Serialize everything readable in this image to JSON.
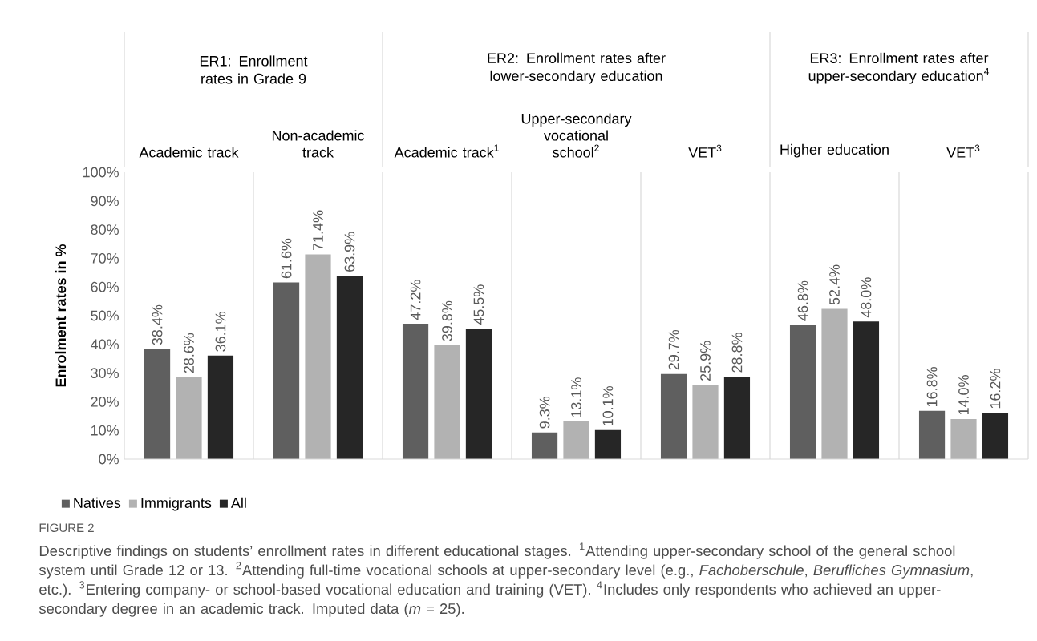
{
  "chart_data": {
    "type": "bar",
    "title": "FIGURE 2",
    "ylabel": "Enrolment rates in %",
    "categories": [
      "Academic track",
      "Non-academic track",
      "Academic track$^{1}$",
      "Upper-secondary vocational school$^{2}$",
      "VET$^{3}$",
      "Higher education",
      "VET$^{3}$"
    ],
    "series": [
      {
        "name": "Natives",
        "color": "#5f5f5f",
        "values": [
          38.4,
          61.6,
          47.2,
          9.3,
          29.7,
          46.8,
          16.8
        ],
        "value_labels": [
          "38.4%",
          "61.6%",
          "47.2%",
          "9.3%",
          "29.7%",
          "46.8%",
          "16.8%"
        ]
      },
      {
        "name": "Immigrants",
        "color": "#b2b2b2",
        "values": [
          28.6,
          71.4,
          39.8,
          13.1,
          25.9,
          52.4,
          14.0
        ],
        "value_labels": [
          "28.6%",
          "71.4%",
          "39.8%",
          "13.1%",
          "25.9%",
          "52.4%",
          "14.0%"
        ]
      },
      {
        "name": "All",
        "color": "#262626",
        "values": [
          36.1,
          63.9,
          45.5,
          10.1,
          28.8,
          48.0,
          16.2
        ],
        "value_labels": [
          "36.1%",
          "63.9%",
          "45.5%",
          "10.1%",
          "28.8%",
          "48.0%",
          "16.2%"
        ]
      }
    ],
    "ylim": [
      0,
      100
    ],
    "yticks": [
      {
        "value": 0,
        "label": "0%"
      },
      {
        "value": 10,
        "label": "10%"
      },
      {
        "value": 20,
        "label": "20%"
      },
      {
        "value": 30,
        "label": "30%"
      },
      {
        "value": 40,
        "label": "40%"
      },
      {
        "value": 50,
        "label": "50%"
      },
      {
        "value": 60,
        "label": "60%"
      },
      {
        "value": 70,
        "label": "70%"
      },
      {
        "value": 80,
        "label": "80%"
      },
      {
        "value": 90,
        "label": "90%"
      },
      {
        "value": 100,
        "label": "100%"
      }
    ],
    "legend": "bottom left",
    "annotations": [
      "ER1: Enrollment rates in Grade 9",
      "ER2: Enrollment rates after lower-secondary education",
      "ER3: Enrollment rates after upper-secondary education$^{4}$",
      "Descriptive findings on students’ enrollment rates in different educational stages. $^{1}$Attending upper-secondary school of the general school system until Grade 12 or 13. $^{2}$Attending full-time vocational schools at upper-secondary level (e.g., *Fachoberschule*, *Berufliches Gymnasium*, etc.). $^{3}$Entering company- or school-based vocational education and training (VET). $^{4}$Includes only respondents who achieved an upper-secondary degree in an academic track. Imputed data (*m* = 25)."
    ]
  }
}
